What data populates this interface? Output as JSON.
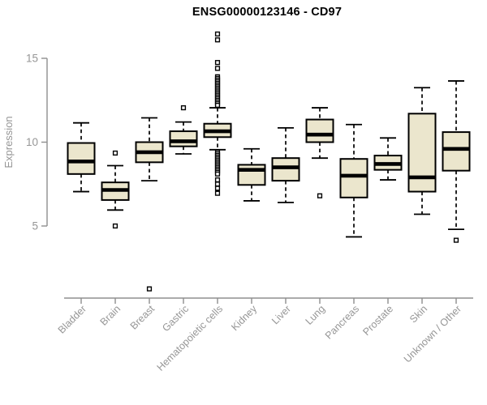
{
  "title": "ENSG00000123146 - CD97",
  "chart_data": {
    "type": "boxplot",
    "title": "ENSG00000123146 - CD97",
    "xlabel": "",
    "ylabel": "Expression",
    "ylim": [
      4.3,
      16.6
    ],
    "yticks": [
      15,
      10,
      5
    ],
    "grid": false,
    "legend": false,
    "categories": [
      "Bladder",
      "Brain",
      "Breast",
      "Gastric",
      "Hematopoietic cells",
      "Kidney",
      "Liver",
      "Lung",
      "Pancreas",
      "Prostate",
      "Skin",
      "Unknown / Other"
    ],
    "series": [
      {
        "category": "Bladder",
        "whisker_low": 7.05,
        "q1": 8.1,
        "median": 8.85,
        "q3": 9.95,
        "whisker_high": 11.15,
        "outliers": []
      },
      {
        "category": "Brain",
        "whisker_low": 5.95,
        "q1": 6.55,
        "median": 7.15,
        "q3": 7.6,
        "whisker_high": 8.6,
        "outliers": [
          9.35,
          5.0
        ]
      },
      {
        "category": "Breast",
        "whisker_low": 7.7,
        "q1": 8.8,
        "median": 9.4,
        "q3": 10.0,
        "whisker_high": 11.45,
        "outliers": [
          1.25
        ]
      },
      {
        "category": "Gastric",
        "whisker_low": 9.3,
        "q1": 9.75,
        "median": 10.05,
        "q3": 10.65,
        "whisker_high": 11.2,
        "outliers": [
          12.05
        ]
      },
      {
        "category": "Hematopoietic cells",
        "whisker_low": 9.55,
        "q1": 10.3,
        "median": 10.65,
        "q3": 11.1,
        "whisker_high": 12.05,
        "outliers": [
          16.45,
          16.1,
          14.75,
          14.4,
          13.9,
          13.8,
          13.7,
          13.6,
          13.5,
          13.4,
          13.3,
          13.2,
          13.1,
          13.0,
          12.9,
          12.8,
          12.7,
          12.6,
          12.5,
          12.4,
          12.3,
          12.2,
          9.4,
          9.3,
          9.2,
          9.1,
          9.0,
          8.9,
          8.8,
          8.7,
          8.6,
          8.5,
          8.4,
          8.3,
          8.2,
          8.1,
          7.75,
          7.5,
          7.25,
          6.95
        ]
      },
      {
        "category": "Kidney",
        "whisker_low": 6.5,
        "q1": 7.45,
        "median": 8.35,
        "q3": 8.65,
        "whisker_high": 9.6,
        "outliers": []
      },
      {
        "category": "Liver",
        "whisker_low": 6.4,
        "q1": 7.7,
        "median": 8.5,
        "q3": 9.05,
        "whisker_high": 10.85,
        "outliers": []
      },
      {
        "category": "Lung",
        "whisker_low": 9.05,
        "q1": 10.0,
        "median": 10.45,
        "q3": 11.35,
        "whisker_high": 12.05,
        "outliers": [
          6.8
        ]
      },
      {
        "category": "Pancreas",
        "whisker_low": 4.35,
        "q1": 6.7,
        "median": 8.0,
        "q3": 9.0,
        "whisker_high": 11.05,
        "outliers": []
      },
      {
        "category": "Prostate",
        "whisker_low": 7.75,
        "q1": 8.35,
        "median": 8.7,
        "q3": 9.2,
        "whisker_high": 10.25,
        "outliers": []
      },
      {
        "category": "Skin",
        "whisker_low": 5.7,
        "q1": 7.05,
        "median": 7.9,
        "q3": 11.7,
        "whisker_high": 13.25,
        "outliers": []
      },
      {
        "category": "Unknown / Other",
        "whisker_low": 4.8,
        "q1": 8.3,
        "median": 9.6,
        "q3": 10.6,
        "whisker_high": 13.65,
        "outliers": [
          4.15
        ]
      }
    ],
    "colors": {
      "box_fill": "#EBE6CD",
      "box_border": "#000000",
      "median": "#000000",
      "whisker": "#000000",
      "outlier_stroke": "#000000",
      "outlier_fill": "#FFFFFF",
      "axis": "#8F8F8F",
      "tick_label": "#969696",
      "title": "#000000",
      "background": "#FFFFFF"
    }
  }
}
